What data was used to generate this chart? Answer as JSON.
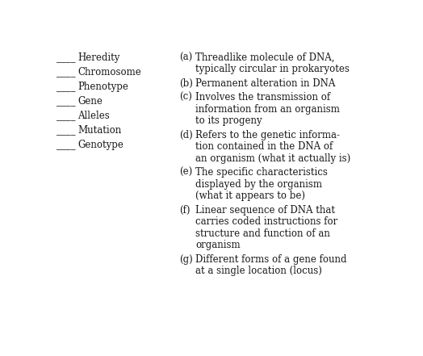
{
  "background_color": "#ffffff",
  "left_terms": [
    "____Heredity",
    "____Chromosome",
    "____Phenotype",
    "____Gene",
    "____Alleles",
    "____Mutation",
    "____Genotype"
  ],
  "right_items": [
    {
      "label": "(a)",
      "lines": [
        "Threadlike molecule of DNA,",
        "typically circular in prokaryotes"
      ]
    },
    {
      "label": "(b)",
      "lines": [
        "Permanent alteration in DNA"
      ]
    },
    {
      "label": "(c)",
      "lines": [
        "Involves the transmission of",
        "information from an organism",
        "to its progeny"
      ]
    },
    {
      "label": "(d)",
      "lines": [
        "Refers to the genetic informa-",
        "tion contained in the DNA of",
        "an organism (what it actually is)"
      ]
    },
    {
      "label": "(e)",
      "lines": [
        "The specific characteristics",
        "displayed by the organism",
        "(what it appears to be)"
      ]
    },
    {
      "label": "(f)",
      "lines": [
        "Linear sequence of DNA that",
        "carries coded instructions for",
        "structure and function of an",
        "organism"
      ]
    },
    {
      "label": "(g)",
      "lines": [
        "Different forms of a gene found",
        "at a single location (locus)"
      ]
    }
  ],
  "font_size": 8.5,
  "text_color": "#1a1a1a",
  "fig_width": 5.24,
  "fig_height": 4.41,
  "dpi": 100
}
